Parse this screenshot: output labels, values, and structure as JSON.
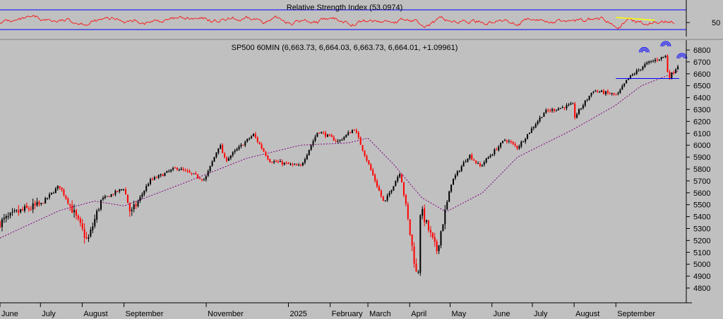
{
  "chart_data": [
    {
      "panel": "rsi",
      "type": "line",
      "title": "Relative Strength Index (53.0974)",
      "ylim": [
        0,
        100
      ],
      "y_ticks": [
        50
      ],
      "reference_levels": [
        70,
        30
      ],
      "series": [
        {
          "name": "Relative Strength Index",
          "color": "#ff0000"
        }
      ],
      "annotations": [
        {
          "type": "trendline",
          "color": "#ffff00",
          "from": {
            "x": "2025-09-01",
            "y": 68
          },
          "to": {
            "x": "2025-09-30",
            "y": 58
          }
        }
      ],
      "colors": {
        "rsi": "#ff0000",
        "levels": "#0000ff",
        "trendline": "#ffff00"
      }
    },
    {
      "panel": "price",
      "type": "candlestick",
      "title": "SP500 60MIN (6,663.73, 6,664.03, 6,663.73, 6,664.01, +1.09961)",
      "ylim": [
        4700,
        6850
      ],
      "y_ticks": [
        6800,
        6700,
        6600,
        6500,
        6400,
        6300,
        6200,
        6100,
        6000,
        5900,
        5800,
        5700,
        5600,
        5500,
        5400,
        5300,
        5200,
        5100,
        5000,
        4900,
        4800
      ],
      "x_ticks": [
        "June",
        "July",
        "August",
        "September",
        "November",
        "2025",
        "February",
        "March",
        "April",
        "May",
        "June",
        "July",
        "August",
        "September"
      ],
      "price_path": [
        [
          "2024-06-01",
          5350
        ],
        [
          "2024-06-15",
          5440
        ],
        [
          "2024-07-01",
          5500
        ],
        [
          "2024-07-15",
          5660
        ],
        [
          "2024-07-25",
          5450
        ],
        [
          "2024-08-05",
          5190
        ],
        [
          "2024-08-15",
          5540
        ],
        [
          "2024-09-01",
          5640
        ],
        [
          "2024-09-06",
          5420
        ],
        [
          "2024-09-20",
          5700
        ],
        [
          "2024-10-10",
          5810
        ],
        [
          "2024-10-31",
          5710
        ],
        [
          "2024-11-11",
          6010
        ],
        [
          "2024-11-15",
          5870
        ],
        [
          "2024-12-06",
          6090
        ],
        [
          "2024-12-18",
          5870
        ],
        [
          "2025-01-10",
          5820
        ],
        [
          "2025-01-23",
          6120
        ],
        [
          "2025-02-07",
          6030
        ],
        [
          "2025-02-19",
          6140
        ],
        [
          "2025-03-13",
          5510
        ],
        [
          "2025-03-25",
          5780
        ],
        [
          "2025-04-07",
          4840
        ],
        [
          "2025-04-09",
          5470
        ],
        [
          "2025-04-21",
          5110
        ],
        [
          "2025-05-02",
          5690
        ],
        [
          "2025-05-15",
          5920
        ],
        [
          "2025-05-23",
          5820
        ],
        [
          "2025-06-11",
          6050
        ],
        [
          "2025-06-20",
          5980
        ],
        [
          "2025-07-10",
          6280
        ],
        [
          "2025-07-31",
          6340
        ],
        [
          "2025-08-01",
          6230
        ],
        [
          "2025-08-15",
          6460
        ],
        [
          "2025-09-02",
          6420
        ],
        [
          "2025-09-10",
          6560
        ],
        [
          "2025-09-23",
          6680
        ],
        [
          "2025-10-01",
          6720
        ],
        [
          "2025-10-08",
          6750
        ],
        [
          "2025-10-10",
          6560
        ],
        [
          "2025-10-17",
          6670
        ]
      ],
      "moving_average": [
        [
          "2024-06-01",
          5220
        ],
        [
          "2024-07-15",
          5450
        ],
        [
          "2024-08-10",
          5530
        ],
        [
          "2024-09-01",
          5490
        ],
        [
          "2024-10-15",
          5680
        ],
        [
          "2024-12-01",
          5890
        ],
        [
          "2025-01-10",
          6000
        ],
        [
          "2025-02-15",
          6020
        ],
        [
          "2025-03-01",
          6060
        ],
        [
          "2025-03-20",
          5840
        ],
        [
          "2025-04-10",
          5560
        ],
        [
          "2025-04-28",
          5440
        ],
        [
          "2025-05-25",
          5600
        ],
        [
          "2025-06-20",
          5900
        ],
        [
          "2025-07-31",
          6130
        ],
        [
          "2025-08-31",
          6330
        ],
        [
          "2025-09-20",
          6500
        ],
        [
          "2025-10-17",
          6620
        ]
      ],
      "annotations": [
        {
          "type": "horizontal_line",
          "color": "#0000ff",
          "y": 6560,
          "from_x": "2025-09-01"
        },
        {
          "type": "arc_pattern",
          "color": "#0000ff",
          "label": "left shoulder",
          "x": "2025-09-22",
          "y": 6780
        },
        {
          "type": "arc_pattern",
          "color": "#0000ff",
          "label": "head",
          "x": "2025-10-08",
          "y": 6830
        },
        {
          "type": "arc_pattern",
          "color": "#0000ff",
          "label": "right shoulder",
          "x": "2025-10-20",
          "y": 6730
        }
      ],
      "colors": {
        "up_candle": "#000000",
        "down_candle": "#ff0000",
        "moving_average": "#800080",
        "background": "#c0c0c0"
      }
    }
  ]
}
